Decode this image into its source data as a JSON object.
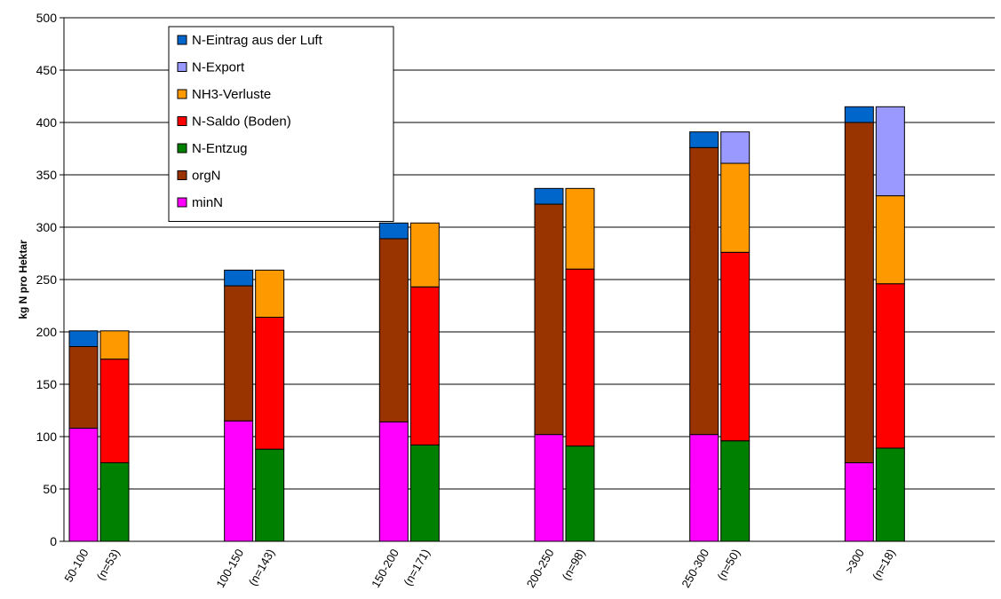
{
  "chart_data": {
    "type": "bar",
    "stacked": true,
    "ylabel": "kg N pro Hektar",
    "ylim": [
      0,
      500
    ],
    "yticks": [
      0,
      50,
      100,
      150,
      200,
      250,
      300,
      350,
      400,
      450,
      500
    ],
    "grid": "horizontal",
    "legend_position": "top-left",
    "groups": [
      "50-100",
      "100-150",
      "150-200",
      "200-250",
      "250-300",
      ">300"
    ],
    "categories": [
      "50-100",
      "(n=53)",
      "100-150",
      "(n=143)",
      "150-200",
      "(n=171)",
      "200-250",
      "(n=98)",
      "250-300",
      "(n=50)",
      ">300",
      "(n=18)"
    ],
    "legend": [
      {
        "name": "N-Eintrag aus der Luft",
        "color": "#0066cc"
      },
      {
        "name": "N-Export",
        "color": "#9999ff"
      },
      {
        "name": "NH3-Verluste",
        "color": "#ff9900"
      },
      {
        "name": "N-Saldo (Boden)",
        "color": "#ff0000"
      },
      {
        "name": "N-Entzug",
        "color": "#008000"
      },
      {
        "name": "orgN",
        "color": "#993300"
      },
      {
        "name": "minN",
        "color": "#ff00ff"
      }
    ],
    "input_bars": {
      "note": "left bar of each group",
      "series": [
        {
          "name": "minN",
          "values": [
            108,
            115,
            114,
            102,
            102,
            75
          ]
        },
        {
          "name": "orgN",
          "values": [
            78,
            129,
            175,
            220,
            274,
            325
          ]
        },
        {
          "name": "N-Eintrag aus der Luft",
          "values": [
            15,
            15,
            15,
            15,
            15,
            15
          ]
        }
      ]
    },
    "output_bars": {
      "note": "right bar of each group",
      "series": [
        {
          "name": "N-Entzug",
          "values": [
            75,
            88,
            92,
            91,
            96,
            89
          ]
        },
        {
          "name": "N-Saldo (Boden)",
          "values": [
            99,
            126,
            151,
            169,
            180,
            157
          ]
        },
        {
          "name": "NH3-Verluste",
          "values": [
            27,
            45,
            61,
            77,
            85,
            84
          ]
        },
        {
          "name": "N-Export",
          "values": [
            0,
            0,
            0,
            0,
            30,
            85
          ]
        }
      ]
    }
  }
}
